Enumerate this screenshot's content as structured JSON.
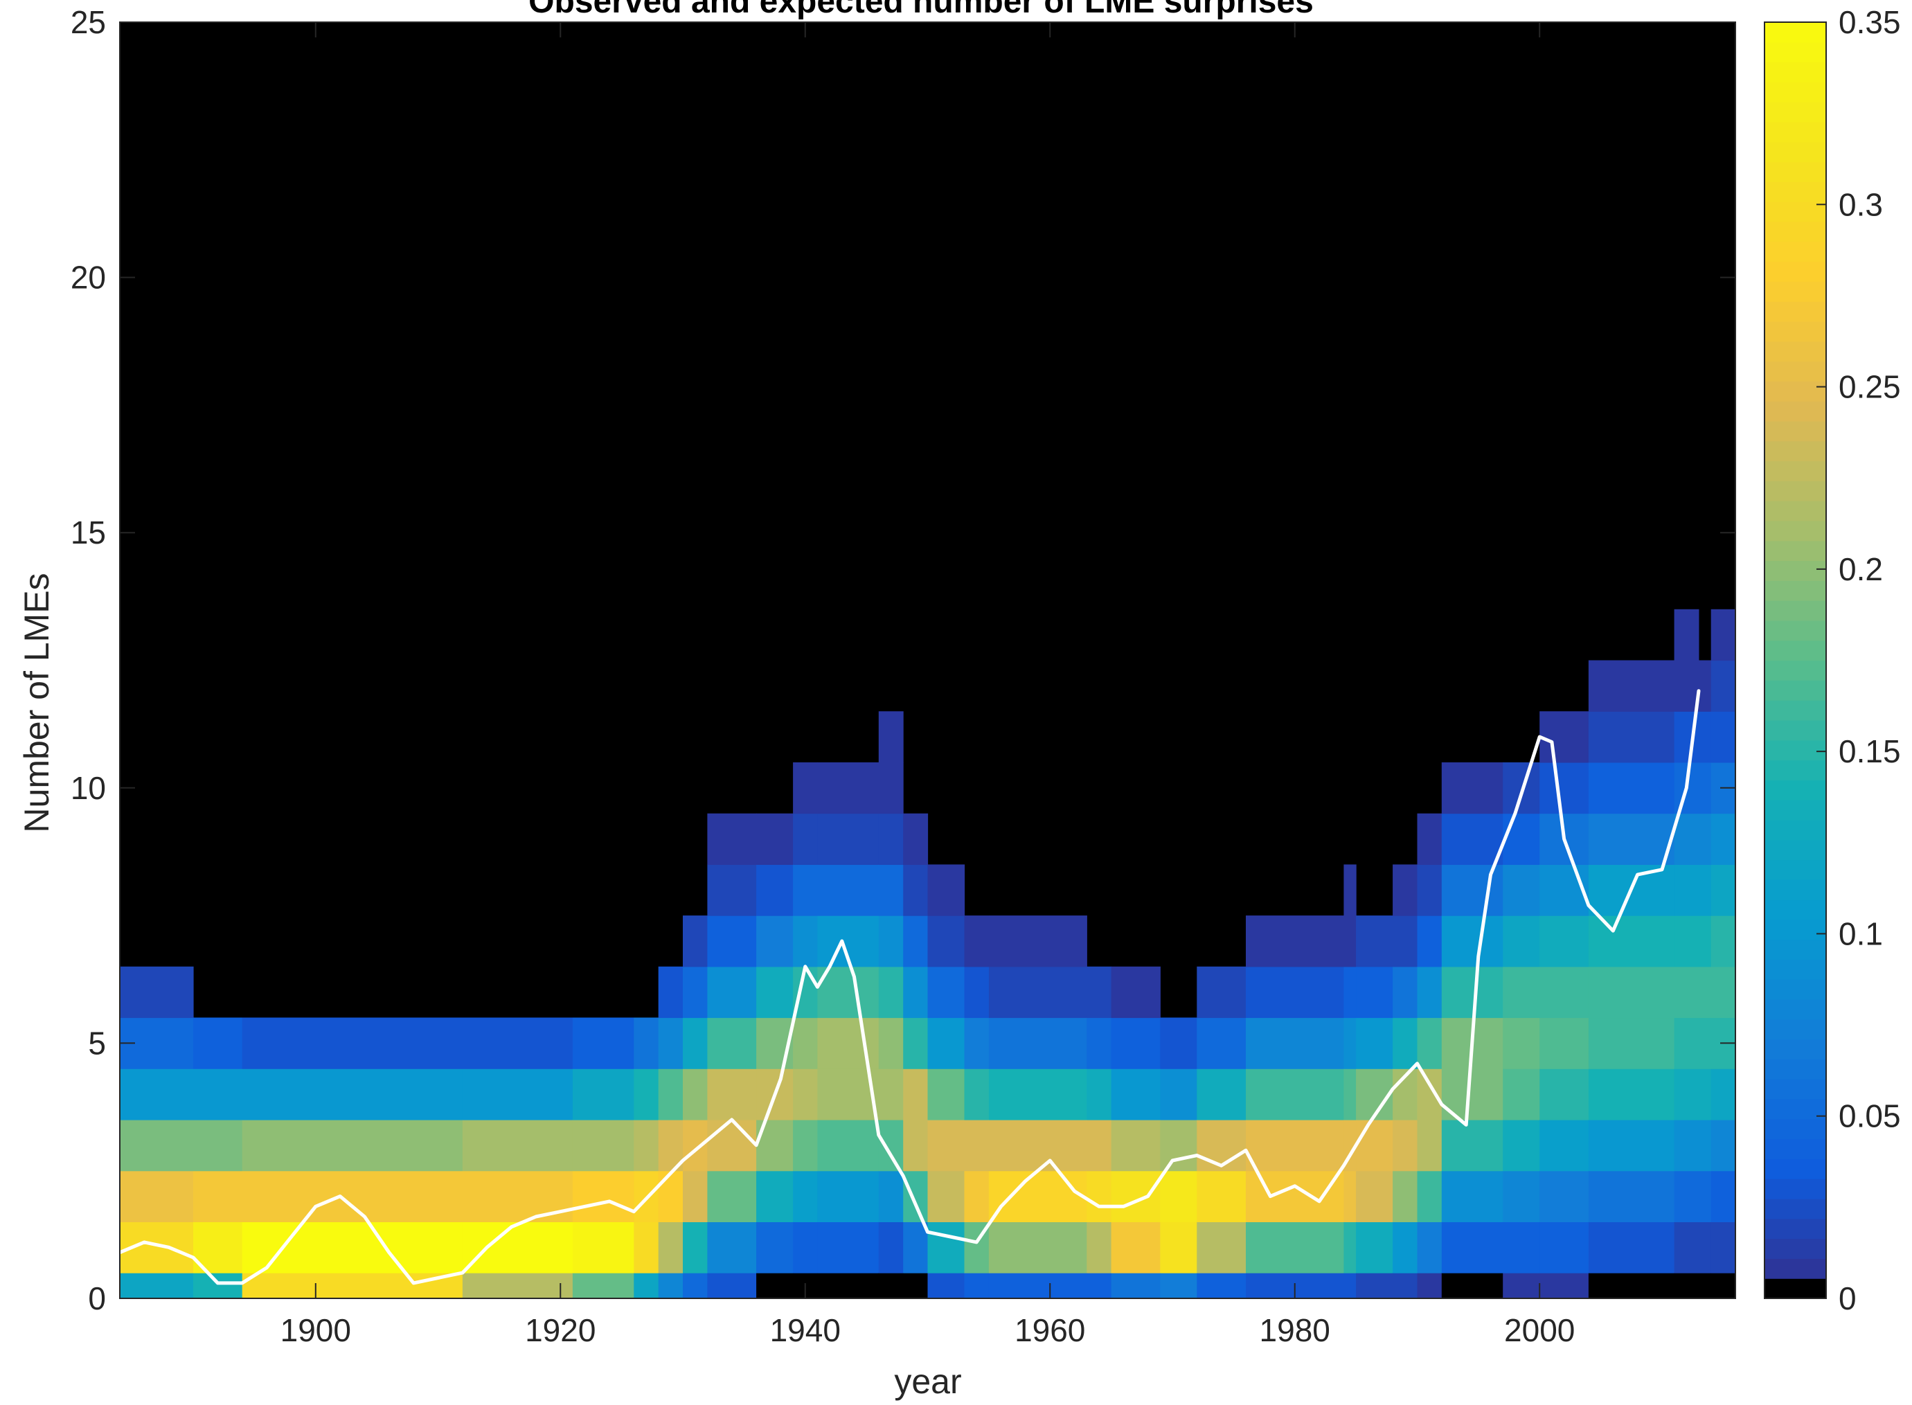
{
  "chart_data": {
    "type": "heatmap",
    "title": "Observed and expected number of LME surprises",
    "xlabel": "year",
    "ylabel": "Number of LMEs",
    "xlim": [
      1884,
      2016
    ],
    "ylim": [
      0,
      25
    ],
    "xticks": [
      1900,
      1920,
      1940,
      1960,
      1980,
      2000
    ],
    "xtick_labels": [
      "1900",
      "1920",
      "1940",
      "1960",
      "1980",
      "2000"
    ],
    "yticks": [
      0,
      5,
      10,
      15,
      20,
      25
    ],
    "ytick_labels": [
      "0",
      "5",
      "10",
      "15",
      "20",
      "25"
    ],
    "colorbar": {
      "colormap": "parula",
      "min": 0,
      "max": 0.35,
      "ticks": [
        0,
        0.05,
        0.1,
        0.15,
        0.2,
        0.25,
        0.3,
        0.35
      ],
      "tick_labels": [
        "0",
        "0.05",
        "0.1",
        "0.15",
        "0.2",
        "0.25",
        "0.3",
        "0.35"
      ],
      "zero_color": "#000000"
    },
    "heatmap": {
      "description_of_bins": "rows are integer LME counts 0..13, columns are year bands",
      "bands": [
        {
          "from": 1884,
          "to": 1890,
          "column": [
            0.12,
            0.3,
            0.26,
            0.19,
            0.1,
            0.05,
            0.02
          ]
        },
        {
          "from": 1890,
          "to": 1894,
          "column": [
            0.14,
            0.33,
            0.27,
            0.19,
            0.1,
            0.04
          ]
        },
        {
          "from": 1894,
          "to": 1912,
          "column": [
            0.3,
            0.35,
            0.27,
            0.2,
            0.1,
            0.03
          ]
        },
        {
          "from": 1912,
          "to": 1921,
          "column": [
            0.22,
            0.35,
            0.27,
            0.21,
            0.1,
            0.03
          ]
        },
        {
          "from": 1921,
          "to": 1926,
          "column": [
            0.18,
            0.34,
            0.28,
            0.21,
            0.12,
            0.04
          ]
        },
        {
          "from": 1926,
          "to": 1928,
          "column": [
            0.12,
            0.3,
            0.29,
            0.22,
            0.14,
            0.06
          ]
        },
        {
          "from": 1928,
          "to": 1930,
          "column": [
            0.08,
            0.22,
            0.28,
            0.24,
            0.17,
            0.08,
            0.03
          ]
        },
        {
          "from": 1930,
          "to": 1932,
          "column": [
            0.05,
            0.14,
            0.24,
            0.25,
            0.2,
            0.12,
            0.05,
            0.02
          ]
        },
        {
          "from": 1932,
          "to": 1936,
          "column": [
            0.03,
            0.08,
            0.18,
            0.24,
            0.23,
            0.16,
            0.09,
            0.04,
            0.02,
            0.01
          ]
        },
        {
          "from": 1936,
          "to": 1939,
          "column": [
            0,
            0.05,
            0.13,
            0.2,
            0.23,
            0.19,
            0.13,
            0.07,
            0.03,
            0.01
          ]
        },
        {
          "from": 1939,
          "to": 1941,
          "column": [
            0,
            0.04,
            0.11,
            0.18,
            0.22,
            0.2,
            0.15,
            0.09,
            0.05,
            0.02,
            0.01
          ]
        },
        {
          "from": 1941,
          "to": 1946,
          "column": [
            0,
            0.04,
            0.1,
            0.17,
            0.21,
            0.21,
            0.16,
            0.1,
            0.05,
            0.02,
            0.01
          ]
        },
        {
          "from": 1946,
          "to": 1948,
          "column": [
            0,
            0.03,
            0.09,
            0.17,
            0.21,
            0.2,
            0.15,
            0.09,
            0.05,
            0.02,
            0.01,
            0.01
          ]
        },
        {
          "from": 1948,
          "to": 1950,
          "column": [
            0,
            0.06,
            0.16,
            0.23,
            0.23,
            0.15,
            0.09,
            0.05,
            0.02,
            0.01
          ]
        },
        {
          "from": 1950,
          "to": 1953,
          "column": [
            0.03,
            0.13,
            0.23,
            0.24,
            0.18,
            0.1,
            0.05,
            0.02,
            0.01
          ]
        },
        {
          "from": 1953,
          "to": 1955,
          "column": [
            0.04,
            0.18,
            0.27,
            0.24,
            0.15,
            0.07,
            0.03,
            0.01
          ]
        },
        {
          "from": 1955,
          "to": 1963,
          "column": [
            0.04,
            0.2,
            0.29,
            0.24,
            0.14,
            0.06,
            0.02,
            0.01
          ]
        },
        {
          "from": 1963,
          "to": 1965,
          "column": [
            0.04,
            0.22,
            0.3,
            0.24,
            0.13,
            0.05,
            0.02
          ]
        },
        {
          "from": 1965,
          "to": 1969,
          "column": [
            0.06,
            0.27,
            0.31,
            0.22,
            0.1,
            0.04,
            0.01
          ]
        },
        {
          "from": 1969,
          "to": 1972,
          "column": [
            0.07,
            0.31,
            0.32,
            0.21,
            0.09,
            0.03
          ]
        },
        {
          "from": 1972,
          "to": 1976,
          "column": [
            0.04,
            0.22,
            0.3,
            0.24,
            0.13,
            0.05,
            0.02
          ]
        },
        {
          "from": 1976,
          "to": 1984,
          "column": [
            0.03,
            0.17,
            0.27,
            0.25,
            0.16,
            0.08,
            0.03,
            0.01
          ]
        },
        {
          "from": 1984,
          "to": 1985,
          "column": [
            0.03,
            0.15,
            0.26,
            0.25,
            0.17,
            0.09,
            0.04,
            0.01,
            0.01
          ]
        },
        {
          "from": 1985,
          "to": 1988,
          "column": [
            0.02,
            0.13,
            0.24,
            0.25,
            0.19,
            0.1,
            0.04,
            0.02
          ]
        },
        {
          "from": 1988,
          "to": 1990,
          "column": [
            0.02,
            0.1,
            0.2,
            0.24,
            0.21,
            0.13,
            0.06,
            0.02,
            0.01
          ]
        },
        {
          "from": 1990,
          "to": 1992,
          "column": [
            0.01,
            0.07,
            0.16,
            0.22,
            0.22,
            0.16,
            0.09,
            0.04,
            0.02,
            0.01
          ]
        },
        {
          "from": 1992,
          "to": 1997,
          "column": [
            0,
            0.04,
            0.09,
            0.15,
            0.19,
            0.19,
            0.15,
            0.1,
            0.06,
            0.03,
            0.01
          ]
        },
        {
          "from": 1997,
          "to": 2000,
          "column": [
            0.01,
            0.04,
            0.08,
            0.13,
            0.17,
            0.18,
            0.16,
            0.12,
            0.08,
            0.04,
            0.02
          ]
        },
        {
          "from": 2000,
          "to": 2004,
          "column": [
            0.01,
            0.04,
            0.07,
            0.11,
            0.15,
            0.17,
            0.16,
            0.13,
            0.09,
            0.06,
            0.03,
            0.01
          ]
        },
        {
          "from": 2004,
          "to": 2011,
          "column": [
            0,
            0.03,
            0.06,
            0.1,
            0.14,
            0.16,
            0.16,
            0.14,
            0.11,
            0.07,
            0.04,
            0.02,
            0.01
          ]
        },
        {
          "from": 2011,
          "to": 2013,
          "column": [
            0,
            0.02,
            0.05,
            0.09,
            0.13,
            0.15,
            0.16,
            0.14,
            0.11,
            0.08,
            0.05,
            0.03,
            0.01,
            0.01
          ]
        },
        {
          "from": 2013,
          "to": 2014,
          "column": [
            0,
            0.02,
            0.05,
            0.09,
            0.13,
            0.15,
            0.16,
            0.14,
            0.11,
            0.08,
            0.05,
            0.03,
            0.01
          ]
        },
        {
          "from": 2014,
          "to": 2016,
          "column": [
            0,
            0.02,
            0.04,
            0.08,
            0.12,
            0.15,
            0.16,
            0.15,
            0.12,
            0.09,
            0.06,
            0.03,
            0.02,
            0.01
          ]
        }
      ]
    },
    "series": [
      {
        "color": "#ffffff",
        "type": "line",
        "x": [
          1884,
          1886,
          1888,
          1890,
          1892,
          1894,
          1896,
          1898,
          1900,
          1902,
          1904,
          1906,
          1908,
          1910,
          1912,
          1914,
          1916,
          1918,
          1920,
          1922,
          1924,
          1926,
          1928,
          1930,
          1932,
          1934,
          1936,
          1938,
          1940,
          1941,
          1942,
          1943,
          1944,
          1946,
          1948,
          1950,
          1952,
          1954,
          1956,
          1958,
          1960,
          1962,
          1964,
          1966,
          1968,
          1970,
          1972,
          1974,
          1976,
          1978,
          1980,
          1982,
          1984,
          1986,
          1988,
          1990,
          1992,
          1994,
          1995,
          1996,
          1998,
          2000,
          2001,
          2002,
          2004,
          2006,
          2008,
          2010,
          2012,
          2013
        ],
        "y": [
          0.9,
          1.1,
          1.0,
          0.8,
          0.3,
          0.3,
          0.6,
          1.2,
          1.8,
          2.0,
          1.6,
          0.9,
          0.3,
          0.4,
          0.5,
          1.0,
          1.4,
          1.6,
          1.7,
          1.8,
          1.9,
          1.7,
          2.2,
          2.7,
          3.1,
          3.5,
          3.0,
          4.3,
          6.5,
          6.1,
          6.5,
          7.0,
          6.3,
          3.2,
          2.4,
          1.3,
          1.2,
          1.1,
          1.8,
          2.3,
          2.7,
          2.1,
          1.8,
          1.8,
          2.0,
          2.7,
          2.8,
          2.6,
          2.9,
          2.0,
          2.2,
          1.9,
          2.6,
          3.4,
          4.1,
          4.6,
          3.8,
          3.4,
          6.7,
          8.3,
          9.5,
          11.0,
          10.9,
          9.0,
          7.7,
          7.2,
          8.3,
          8.4,
          10.0,
          11.9
        ]
      }
    ]
  }
}
